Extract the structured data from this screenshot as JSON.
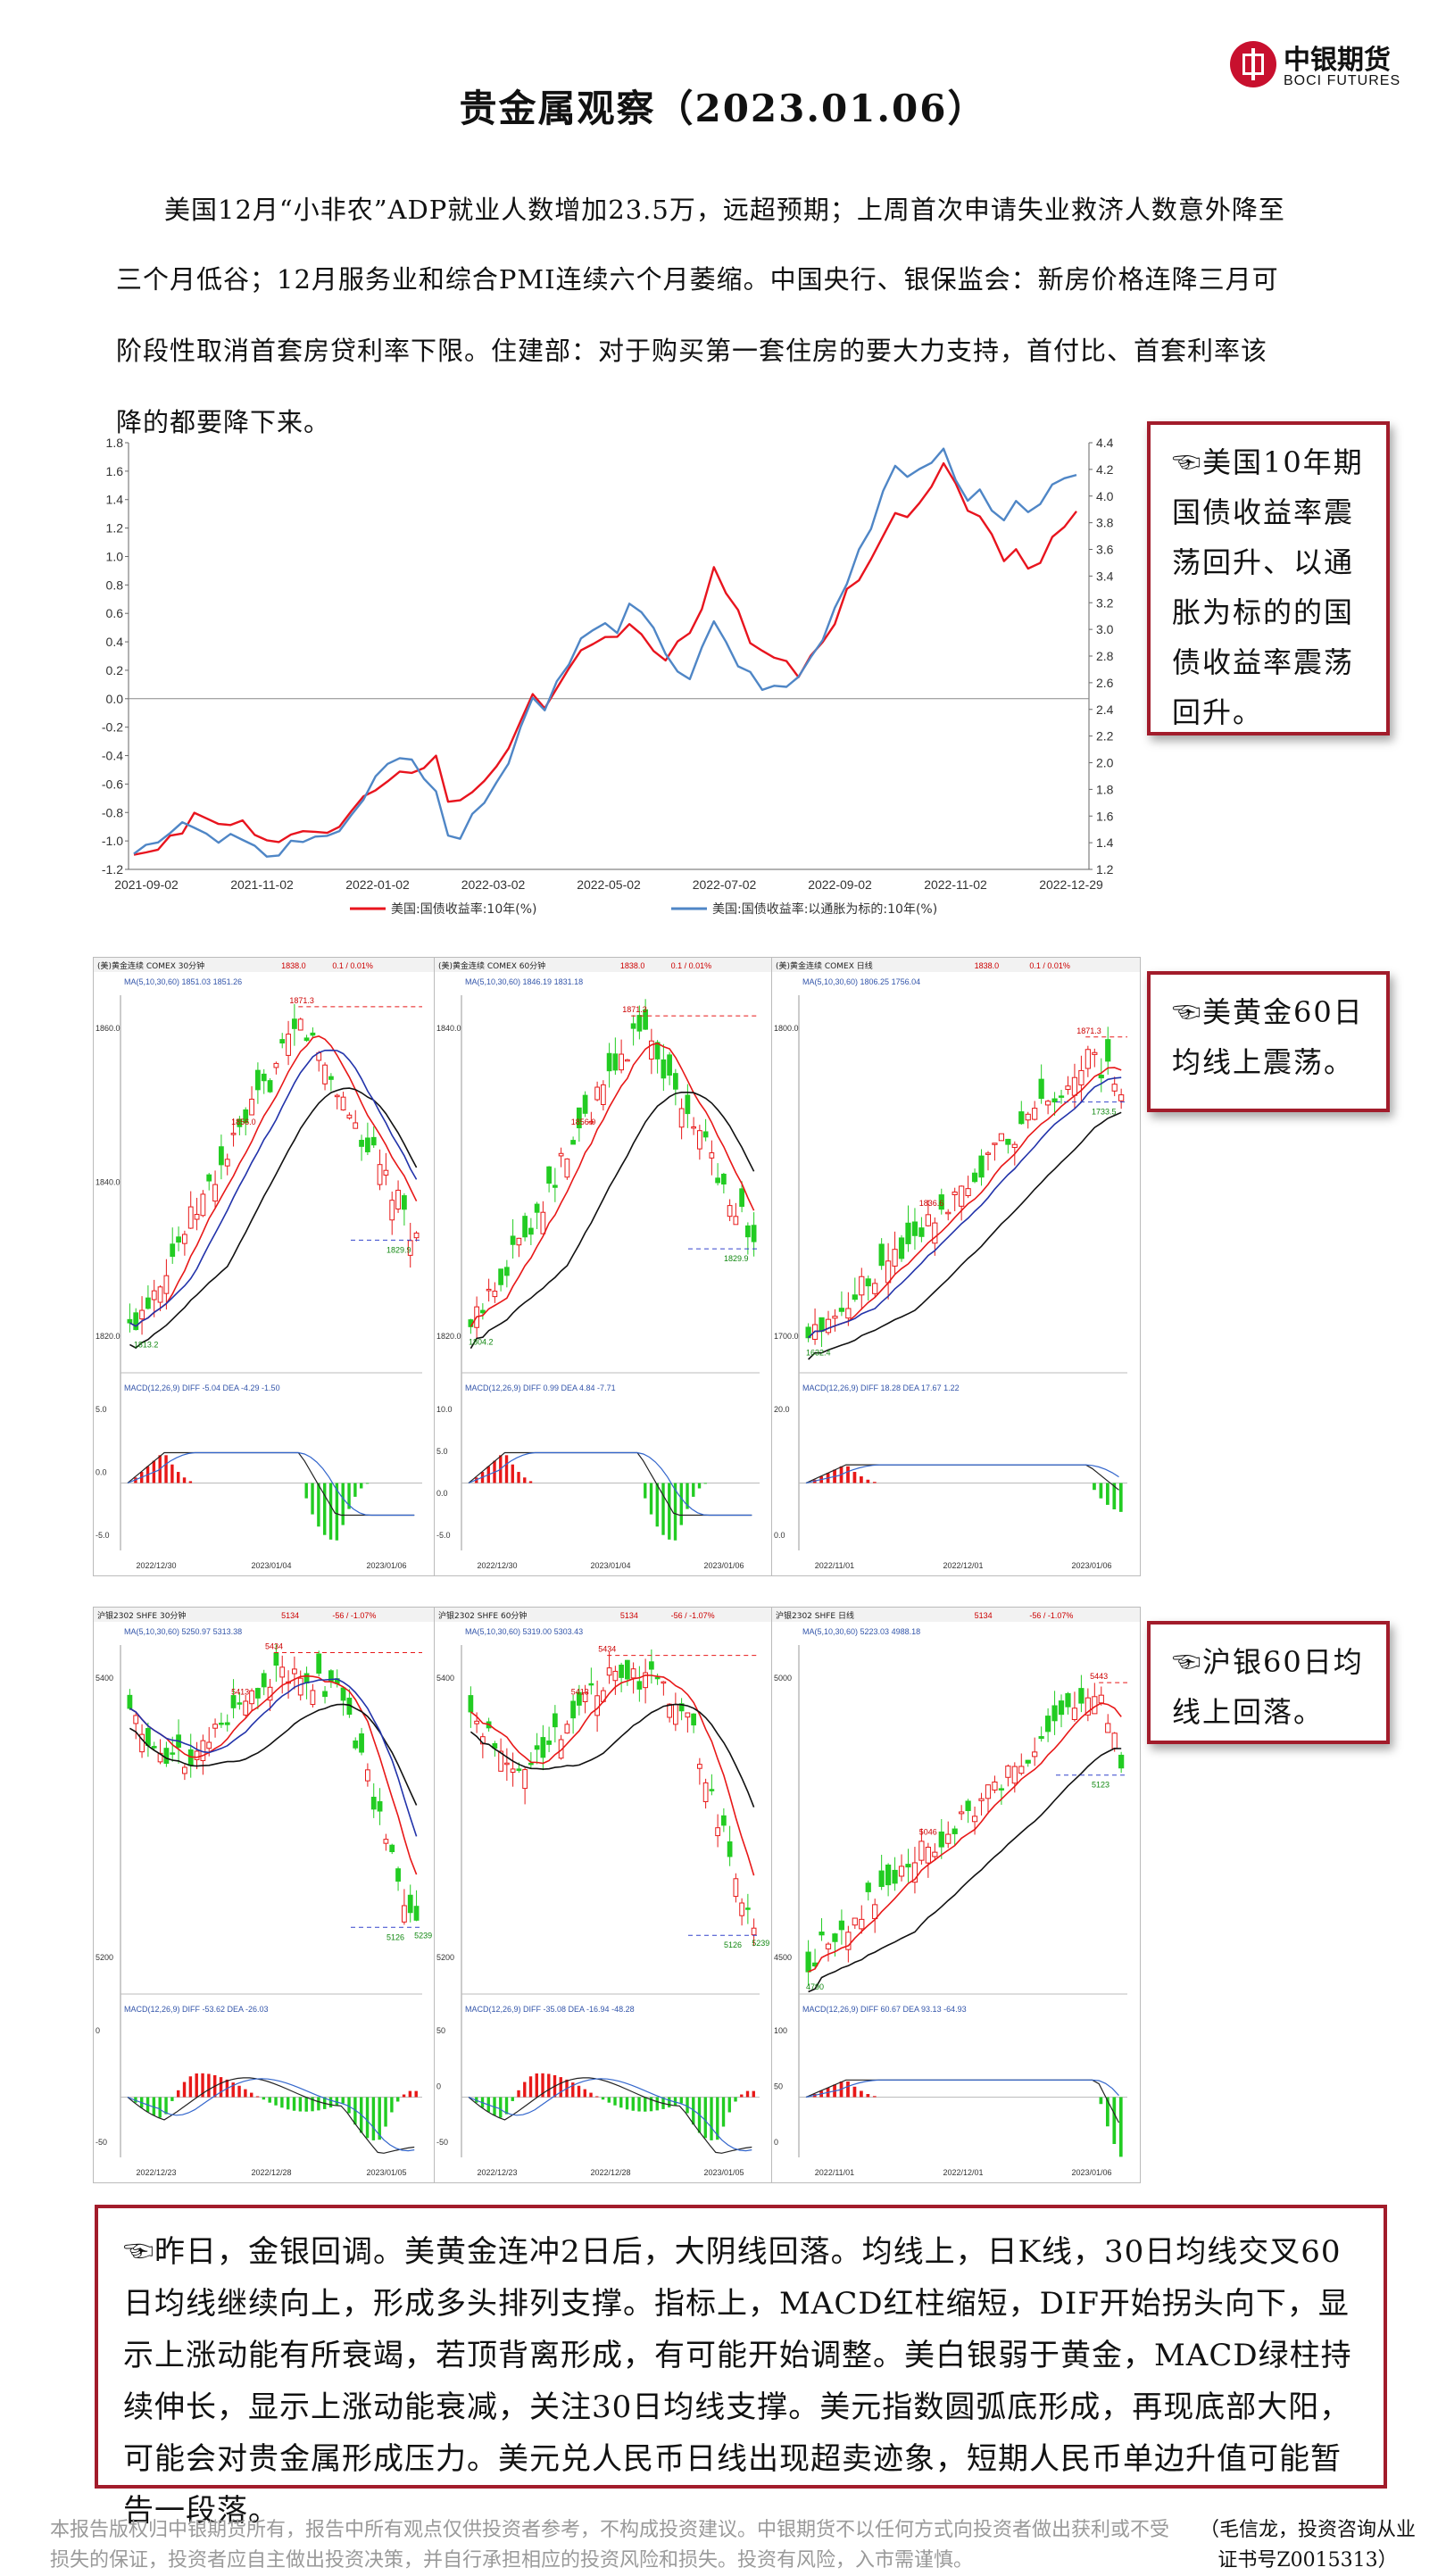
{
  "header": {
    "title": "贵金属观察（2023.01.06）",
    "logo_cn": "中银期货",
    "logo_en": "BOCI FUTURES"
  },
  "intro_lines": [
    "美国12月“小非农”ADP就业人数增加23.5万，远超预期；上周首次申请失业救济人数意外降至",
    "三个月低谷；12月服务业和综合PMI连续六个月萎缩。中国央行、银保监会：新房价格连降三月可",
    "阶段性取消首套房贷利率下限。住建部：对于购买第一套住房的要大力支持，首付比、首套利率该",
    "降的都要降下来。"
  ],
  "notes": {
    "note1": "☜美国10年期国债收益率震荡回升、以通胀为标的的国债收益率震荡回升。",
    "note2": "☜美黄金60日均线上震荡。",
    "note3": "☜沪银60日均线上回落。"
  },
  "summary": "☜昨日，金银回调。美黄金连冲2日后，大阴线回落。均线上，日K线，30日均线交叉60日均线继续向上，形成多头排列支撑。指标上，MACD红柱缩短，DIF开始拐头向下，显示上涨动能有所衰竭，若顶背离形成，有可能开始调整。美白银弱于黄金，MACD绿柱持续伸长，显示上涨动能衰减，关注30日均线支撑。美元指数圆弧底形成，再现底部大阳，可能会对贵金属形成压力。美元兑人民币日线出现超卖迹象，短期人民币单边升值可能暂告一段落。",
  "disclaimer": "本报告版权归中银期货所有，报告中所有观点仅供投资者参考，不构成投资建议。中银期货不以任何方式向投资者做出获利或不受损失的保证，投资者应自主做出投资决策，并自行承担相应的投资风险和损失。投资有风险，入市需谨慎。",
  "analyst": "（毛信龙，投资咨询从业证书号Z0015313）",
  "chart_data": [
    {
      "type": "line",
      "x_ticks": [
        "2021-09-02",
        "2021-11-02",
        "2022-01-02",
        "2022-03-02",
        "2022-05-02",
        "2022-07-02",
        "2022-09-02",
        "2022-11-02",
        "2022-12-29"
      ],
      "y_left_ticks": [
        "1.8",
        "1.6",
        "1.4",
        "1.2",
        "1.0",
        "0.8",
        "0.6",
        "0.4",
        "0.2",
        "0.0",
        "-0.2",
        "-0.4",
        "-0.6",
        "-0.8",
        "-1.0",
        "-1.2"
      ],
      "y_left_range": [
        -1.2,
        1.8
      ],
      "y_right_ticks": [
        "4.4",
        "4.2",
        "4.0",
        "3.8",
        "3.6",
        "3.4",
        "3.2",
        "3.0",
        "2.8",
        "2.6",
        "2.4",
        "2.2",
        "2.0",
        "1.8",
        "1.6",
        "1.4",
        "1.2"
      ],
      "y_right_range": [
        1.2,
        4.4
      ],
      "series": [
        {
          "name": "美国:国债收益率:10年(%)",
          "color": "#e8141e",
          "axis": "right",
          "values": [
            1.31,
            1.32,
            1.36,
            1.44,
            1.48,
            1.62,
            1.58,
            1.55,
            1.52,
            1.58,
            1.45,
            1.42,
            1.41,
            1.45,
            1.5,
            1.47,
            1.48,
            1.52,
            1.63,
            1.76,
            1.78,
            1.87,
            1.93,
            1.92,
            1.97,
            2.04,
            1.72,
            1.71,
            1.78,
            1.87,
            1.96,
            2.12,
            2.3,
            2.52,
            2.41,
            2.55,
            2.72,
            2.83,
            2.9,
            2.94,
            2.94,
            3.05,
            2.95,
            2.85,
            2.76,
            2.91,
            2.98,
            3.14,
            3.48,
            3.26,
            3.15,
            2.9,
            2.83,
            2.8,
            2.75,
            2.65,
            2.8,
            2.9,
            3.05,
            3.29,
            3.38,
            3.52,
            3.7,
            3.88,
            3.83,
            3.96,
            4.06,
            4.25,
            4.1,
            3.88,
            3.86,
            3.7,
            3.52,
            3.6,
            3.45,
            3.51,
            3.68,
            3.78,
            3.88
          ]
        },
        {
          "name": "美国:国债收益率:以通胀为标的:10年(%)",
          "color": "#4f86c6",
          "axis": "left",
          "values": [
            -1.08,
            -1.04,
            -1.0,
            -0.95,
            -0.87,
            -0.9,
            -0.96,
            -1.0,
            -0.96,
            -0.99,
            -1.03,
            -1.12,
            -1.09,
            -1.01,
            -1.0,
            -0.97,
            -0.97,
            -0.92,
            -0.83,
            -0.7,
            -0.55,
            -0.46,
            -0.41,
            -0.44,
            -0.55,
            -0.66,
            -0.96,
            -0.98,
            -0.82,
            -0.72,
            -0.6,
            -0.45,
            -0.2,
            0.0,
            -0.07,
            0.11,
            0.25,
            0.42,
            0.48,
            0.54,
            0.45,
            0.68,
            0.6,
            0.5,
            0.32,
            0.18,
            0.15,
            0.35,
            0.55,
            0.4,
            0.22,
            0.2,
            0.05,
            0.1,
            0.08,
            0.15,
            0.3,
            0.4,
            0.65,
            0.8,
            1.05,
            1.2,
            1.45,
            1.65,
            1.55,
            1.62,
            1.66,
            1.75,
            1.55,
            1.38,
            1.48,
            1.32,
            1.25,
            1.4,
            1.3,
            1.38,
            1.5,
            1.55,
            1.58
          ]
        }
      ]
    }
  ],
  "panels": [
    {
      "id": "gold-30m",
      "title": "(美)黄金连续 COMEX 30分钟",
      "price": "1838.0",
      "chg": "0.1 / 0.01%",
      "ma": "MA(5,10,30,60) 1851.03 1851.26",
      "peak": "1871.3",
      "mid": "1856.0",
      "low": "1813.2",
      "end": "1829.9",
      "ylabels": [
        "1860.0",
        "1840.0",
        "1820.0"
      ],
      "macd": "MACD(12,26,9) DIFF -5.04 DEA -4.29 -1.50",
      "macd_ylabels": [
        "5.0",
        "0.0",
        "-5.0"
      ],
      "dates": [
        "2022/12/30",
        "2023/01/04",
        "2023/01/06"
      ],
      "trend": "updown"
    },
    {
      "id": "gold-60m",
      "title": "(美)黄金连续 COMEX 60分钟",
      "price": "1838.0",
      "chg": "0.1 / 0.01%",
      "ma": "MA(5,10,30,60) 1846.19 1831.18",
      "peak": "1871.3",
      "mid": "1856.0",
      "low": "1804.2",
      "end": "1829.9",
      "ylabels": [
        "1840.0",
        "1820.0"
      ],
      "macd": "MACD(12,26,9) DIFF 0.99 DEA 4.84 -7.71",
      "macd_ylabels": [
        "10.0",
        "5.0",
        "0.0",
        "-5.0"
      ],
      "dates": [
        "2022/12/30",
        "2023/01/04",
        "2023/01/06"
      ],
      "trend": "updown"
    },
    {
      "id": "gold-day",
      "title": "(美)黄金连续 COMEX 日线",
      "price": "1838.0",
      "chg": "0.1 / 0.01%",
      "ma": "MA(5,10,30,60) 1806.25 1756.04",
      "peak": "1871.3",
      "mid": "1836.6",
      "low": "1632.4",
      "end": "1733.5",
      "ylabels": [
        "1800.0",
        "1700.0"
      ],
      "macd": "MACD(12,26,9) DIFF 18.28 DEA 17.67 1.22",
      "macd_ylabels": [
        "20.0",
        "0.0"
      ],
      "dates": [
        "2022/11/01",
        "2022/12/01",
        "2023/01/06"
      ],
      "trend": "up"
    },
    {
      "id": "silver-30m",
      "title": "沪银2302 SHFE 30分钟",
      "price": "5134",
      "chg": "-56 / -1.07%",
      "ma": "MA(5,10,30,60) 5250.97 5313.38",
      "peak": "5434",
      "mid": "5413",
      "low": "5239",
      "end": "5126",
      "ylabels": [
        "5400",
        "5200"
      ],
      "macd": "MACD(12,26,9) DIFF -53.62 DEA -26.03",
      "macd_ylabels": [
        "0",
        "-50"
      ],
      "dates": [
        "2022/12/23",
        "2022/12/28",
        "2023/01/05"
      ],
      "trend": "down"
    },
    {
      "id": "silver-60m",
      "title": "沪银2302 SHFE 60分钟",
      "price": "5134",
      "chg": "-56 / -1.07%",
      "ma": "MA(5,10,30,60) 5319.00 5303.43",
      "peak": "5434",
      "mid": "5413",
      "low": "5239",
      "end": "5126",
      "ylabels": [
        "5400",
        "5200"
      ],
      "macd": "MACD(12,26,9) DIFF -35.08 DEA -16.94 -48.28",
      "macd_ylabels": [
        "50",
        "0",
        "-50"
      ],
      "dates": [
        "2022/12/23",
        "2022/12/28",
        "2023/01/05"
      ],
      "trend": "down"
    },
    {
      "id": "silver-day",
      "title": "沪银2302 SHFE 日线",
      "price": "5134",
      "chg": "-56 / -1.07%",
      "ma": "MA(5,10,30,60) 5223.03 4988.18",
      "peak": "5443",
      "mid": "5046",
      "low": "4790",
      "end": "5123",
      "ylabels": [
        "5000",
        "4500"
      ],
      "macd": "MACD(12,26,9) DIFF 60.67 DEA 93.13 -64.93",
      "macd_ylabels": [
        "100",
        "50",
        "0"
      ],
      "dates": [
        "2022/11/01",
        "2022/12/01",
        "2023/01/06"
      ],
      "trend": "upthendown"
    }
  ]
}
